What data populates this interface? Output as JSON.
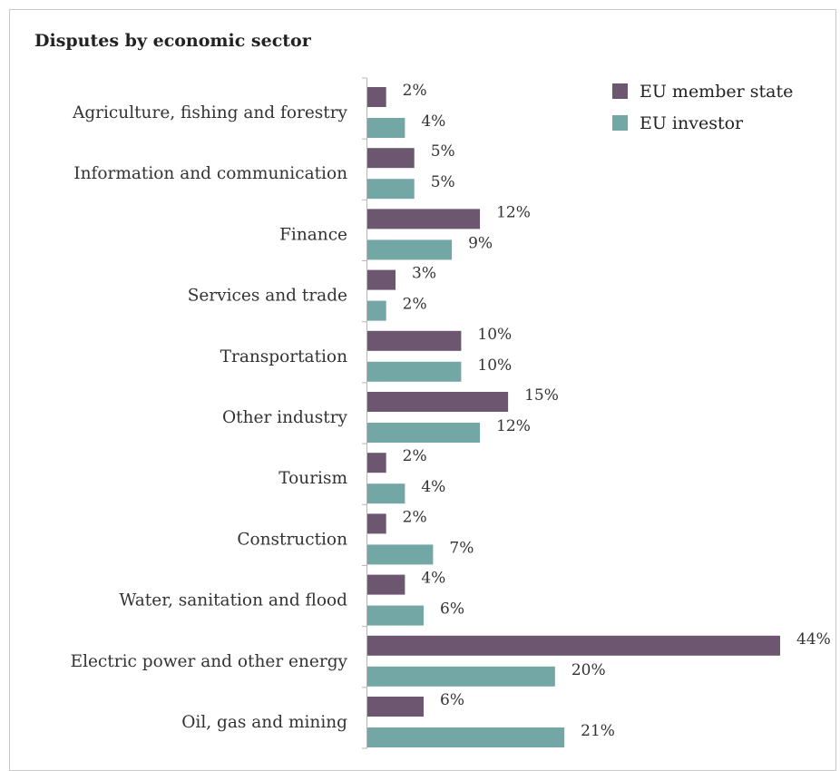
{
  "chart_data": {
    "type": "bar",
    "orientation": "horizontal",
    "title": "Disputes by economic sector",
    "categories": [
      "Agriculture, fishing and forestry",
      "Information and communication",
      "Finance",
      "Services and trade",
      "Transportation",
      "Other industry",
      "Tourism",
      "Construction",
      "Water, sanitation and flood",
      "Electric power and other energy",
      "Oil, gas and mining"
    ],
    "series": [
      {
        "name": "EU member state",
        "color": "#6c5670",
        "values": [
          2,
          5,
          12,
          3,
          10,
          15,
          2,
          2,
          4,
          44,
          6
        ],
        "labels": [
          "2%",
          "5%",
          "12%",
          "3%",
          "10%",
          "15%",
          "2%",
          "2%",
          "4%",
          "44%",
          "6%"
        ]
      },
      {
        "name": "EU investor",
        "color": "#73a7a5",
        "values": [
          4,
          5,
          9,
          2,
          10,
          12,
          4,
          7,
          6,
          20,
          21
        ],
        "labels": [
          "4%",
          "5%",
          "9%",
          "2%",
          "10%",
          "12%",
          "4%",
          "7%",
          "6%",
          "20%",
          "21%"
        ]
      }
    ],
    "value_unit": "%",
    "xlim": [
      0,
      44
    ],
    "grid": false,
    "legend": "top-right"
  }
}
